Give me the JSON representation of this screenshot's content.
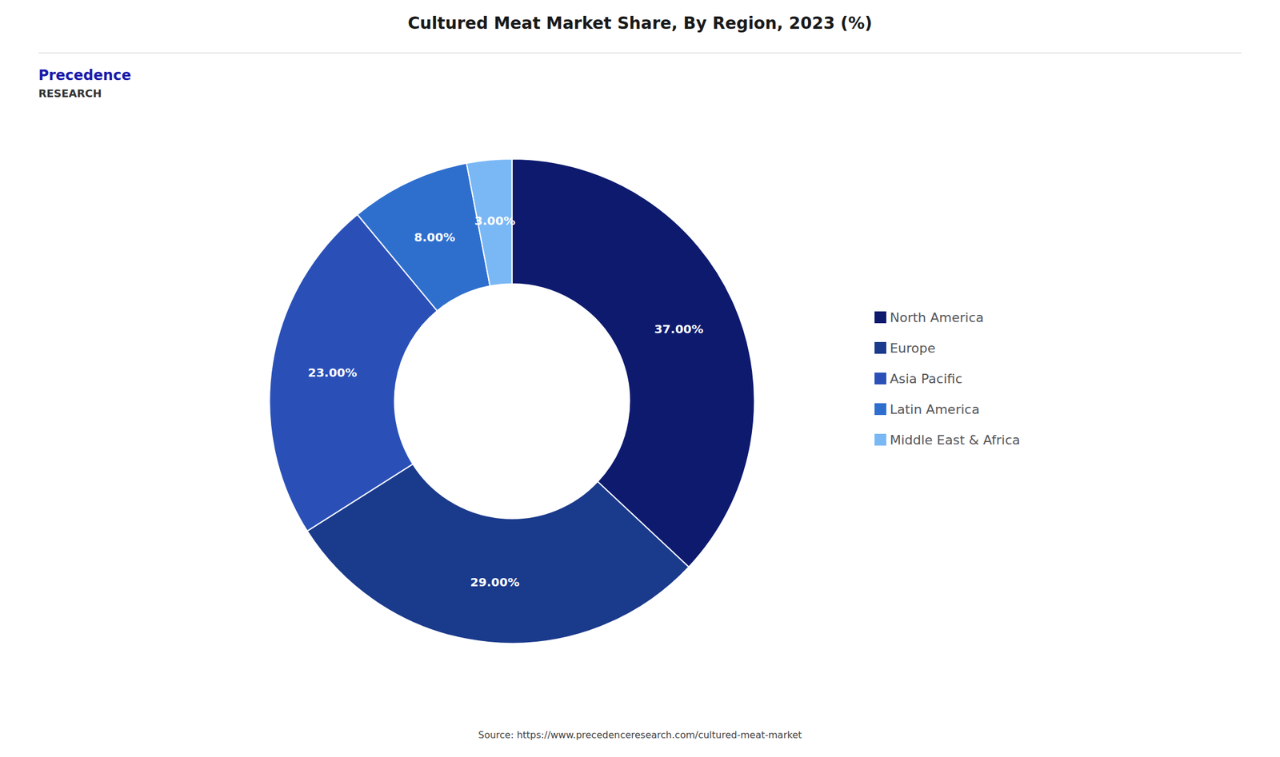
{
  "chart_data": {
    "type": "pie",
    "title": "Cultured Meat Market Share, By Region, 2023 (%)",
    "categories": [
      "North America",
      "Europe",
      "Asia Pacific",
      "Latin America",
      "Middle East & Africa"
    ],
    "values": [
      37.0,
      29.0,
      23.0,
      8.0,
      3.0
    ],
    "value_labels": [
      "37.00%",
      "29.00%",
      "23.00%",
      "8.00%",
      "3.00%"
    ],
    "colors": [
      "#0d1a6e",
      "#1a3a8c",
      "#2a50b8",
      "#2e6fce",
      "#7ab8f5"
    ],
    "data_labels": true,
    "legend": "right",
    "annotations": [
      "Source: https://www.precedenceresearch.com/cultured-meat-market",
      "Precedence",
      "RESEARCH"
    ]
  }
}
